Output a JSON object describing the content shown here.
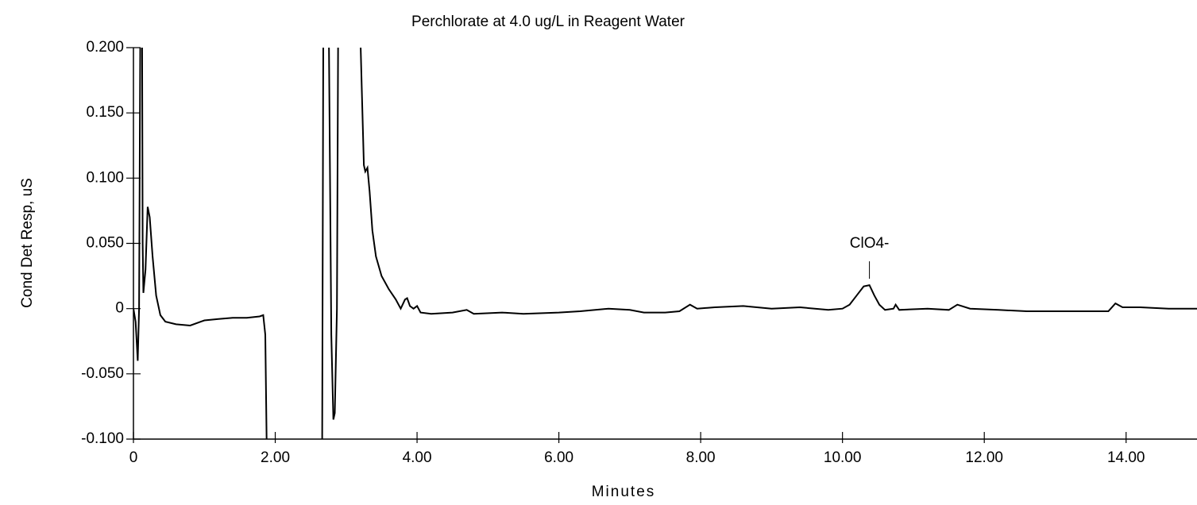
{
  "chart_data": {
    "type": "line",
    "title": "Perchlorate at 4.0 ug/L in Reagent Water",
    "x_label": "Minutes",
    "y_label": "Cond Det Resp, uS",
    "xlim": [
      0,
      15
    ],
    "ylim": [
      -0.1,
      0.2
    ],
    "xticks": [
      0,
      {
        "value": 2,
        "label": "2.00"
      },
      {
        "value": 4,
        "label": "4.00"
      },
      {
        "value": 6,
        "label": "6.00"
      },
      {
        "value": 8,
        "label": "8.00"
      },
      {
        "value": 10,
        "label": "10.00"
      },
      {
        "value": 12,
        "label": "12.00"
      },
      {
        "value": 14,
        "label": "14.00"
      }
    ],
    "yticks": [
      {
        "value": -0.1,
        "label": "-0.100"
      },
      {
        "value": -0.05,
        "label": "-0.050"
      },
      0,
      {
        "value": 0.05,
        "label": "0.050"
      },
      {
        "value": 0.1,
        "label": "0.100"
      },
      {
        "value": 0.15,
        "label": "0.150"
      },
      {
        "value": 0.2,
        "label": "0.200"
      }
    ],
    "annotations": [
      {
        "text": "ClO4-",
        "x": 10.38
      }
    ],
    "series": [
      {
        "name": "Cond Det Resp",
        "color": "#000000",
        "x": [
          0,
          0.03,
          0.06,
          0.08,
          0.1,
          0.12,
          0.13,
          0.14,
          0.17,
          0.2,
          0.23,
          0.27,
          0.32,
          0.38,
          0.45,
          0.6,
          0.8,
          1.0,
          1.2,
          1.4,
          1.6,
          1.78,
          1.83,
          1.86,
          1.89,
          2.2,
          2.66,
          2.68,
          2.75,
          2.79,
          2.82,
          2.84,
          2.87,
          2.89,
          3.18,
          3.22,
          3.25,
          3.27,
          3.3,
          3.33,
          3.37,
          3.42,
          3.5,
          3.6,
          3.7,
          3.77,
          3.83,
          3.86,
          3.9,
          3.95,
          4.0,
          4.05,
          4.2,
          4.5,
          4.7,
          4.8,
          5.2,
          5.5,
          6.0,
          6.3,
          6.7,
          7.0,
          7.2,
          7.5,
          7.7,
          7.85,
          7.95,
          8.2,
          8.6,
          9.0,
          9.4,
          9.8,
          10.0,
          10.1,
          10.2,
          10.3,
          10.38,
          10.45,
          10.52,
          10.6,
          10.72,
          10.75,
          10.8,
          11.2,
          11.5,
          11.62,
          11.8,
          12.2,
          12.6,
          13.0,
          13.5,
          13.75,
          13.85,
          13.95,
          14.2,
          14.6,
          15.0
        ],
        "values": [
          0,
          -0.01,
          -0.04,
          0.0,
          0.25,
          0.25,
          0.05,
          0.012,
          0.03,
          0.078,
          0.07,
          0.04,
          0.01,
          -0.005,
          -0.01,
          -0.012,
          -0.013,
          -0.009,
          -0.008,
          -0.007,
          -0.007,
          -0.006,
          -0.005,
          -0.02,
          -0.15,
          null,
          -0.15,
          0.25,
          0.25,
          -0.02,
          -0.085,
          -0.08,
          0.0,
          0.25,
          0.25,
          0.17,
          0.11,
          0.105,
          0.108,
          0.09,
          0.06,
          0.04,
          0.025,
          0.015,
          0.007,
          0.0,
          0.007,
          0.008,
          0.002,
          0.0,
          0.002,
          -0.003,
          -0.004,
          -0.003,
          -0.001,
          -0.004,
          -0.003,
          -0.004,
          -0.003,
          -0.002,
          0.0,
          -0.001,
          -0.003,
          -0.003,
          -0.002,
          0.003,
          0.0,
          0.001,
          0.002,
          0.0,
          0.001,
          -0.001,
          0.0,
          0.003,
          0.01,
          0.017,
          0.018,
          0.01,
          0.003,
          -0.001,
          0.0,
          0.003,
          -0.001,
          0.0,
          -0.001,
          0.003,
          0.0,
          -0.001,
          -0.002,
          -0.002,
          -0.002,
          -0.002,
          0.004,
          0.001,
          0.001,
          0.0,
          0.0
        ]
      }
    ]
  }
}
